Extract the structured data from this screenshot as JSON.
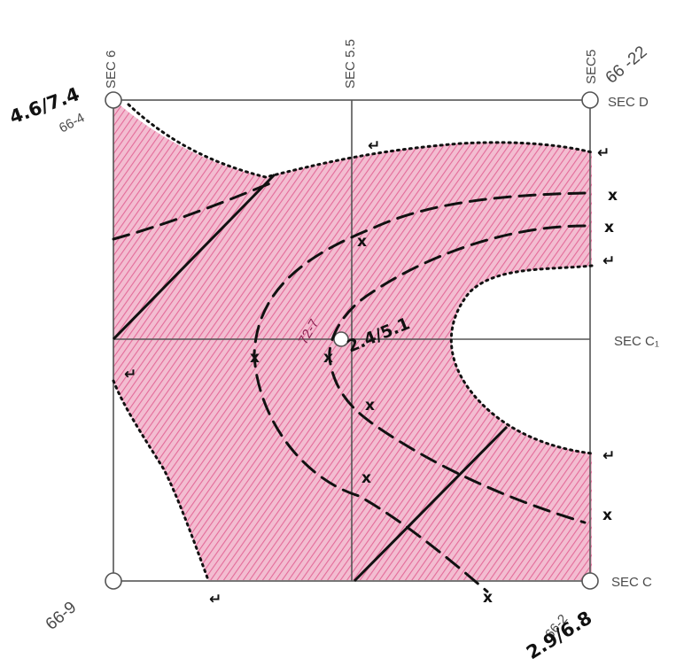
{
  "labels": {
    "sec_6": "SEC 6",
    "sec_5_5": "SEC 5.5",
    "sec_5": "SEC5",
    "sec_d": "SEC D",
    "sec_c1": "SEC C₁",
    "sec_c": "SEC C",
    "well_66_4": "66-4",
    "well_66_22": "66 -22",
    "well_66_9": "66-9",
    "well_66_2": "66-2",
    "well_72_7": "72-7",
    "thick_nw": "4.6/7.4",
    "thick_center": "2.4/5.1",
    "thick_se": "2.9/6.8"
  },
  "colors": {
    "fill": "#e56c9c",
    "grid": "#555555",
    "ink": "#111111"
  },
  "marks": {
    "cross": "x",
    "pinch_out": "↵"
  }
}
